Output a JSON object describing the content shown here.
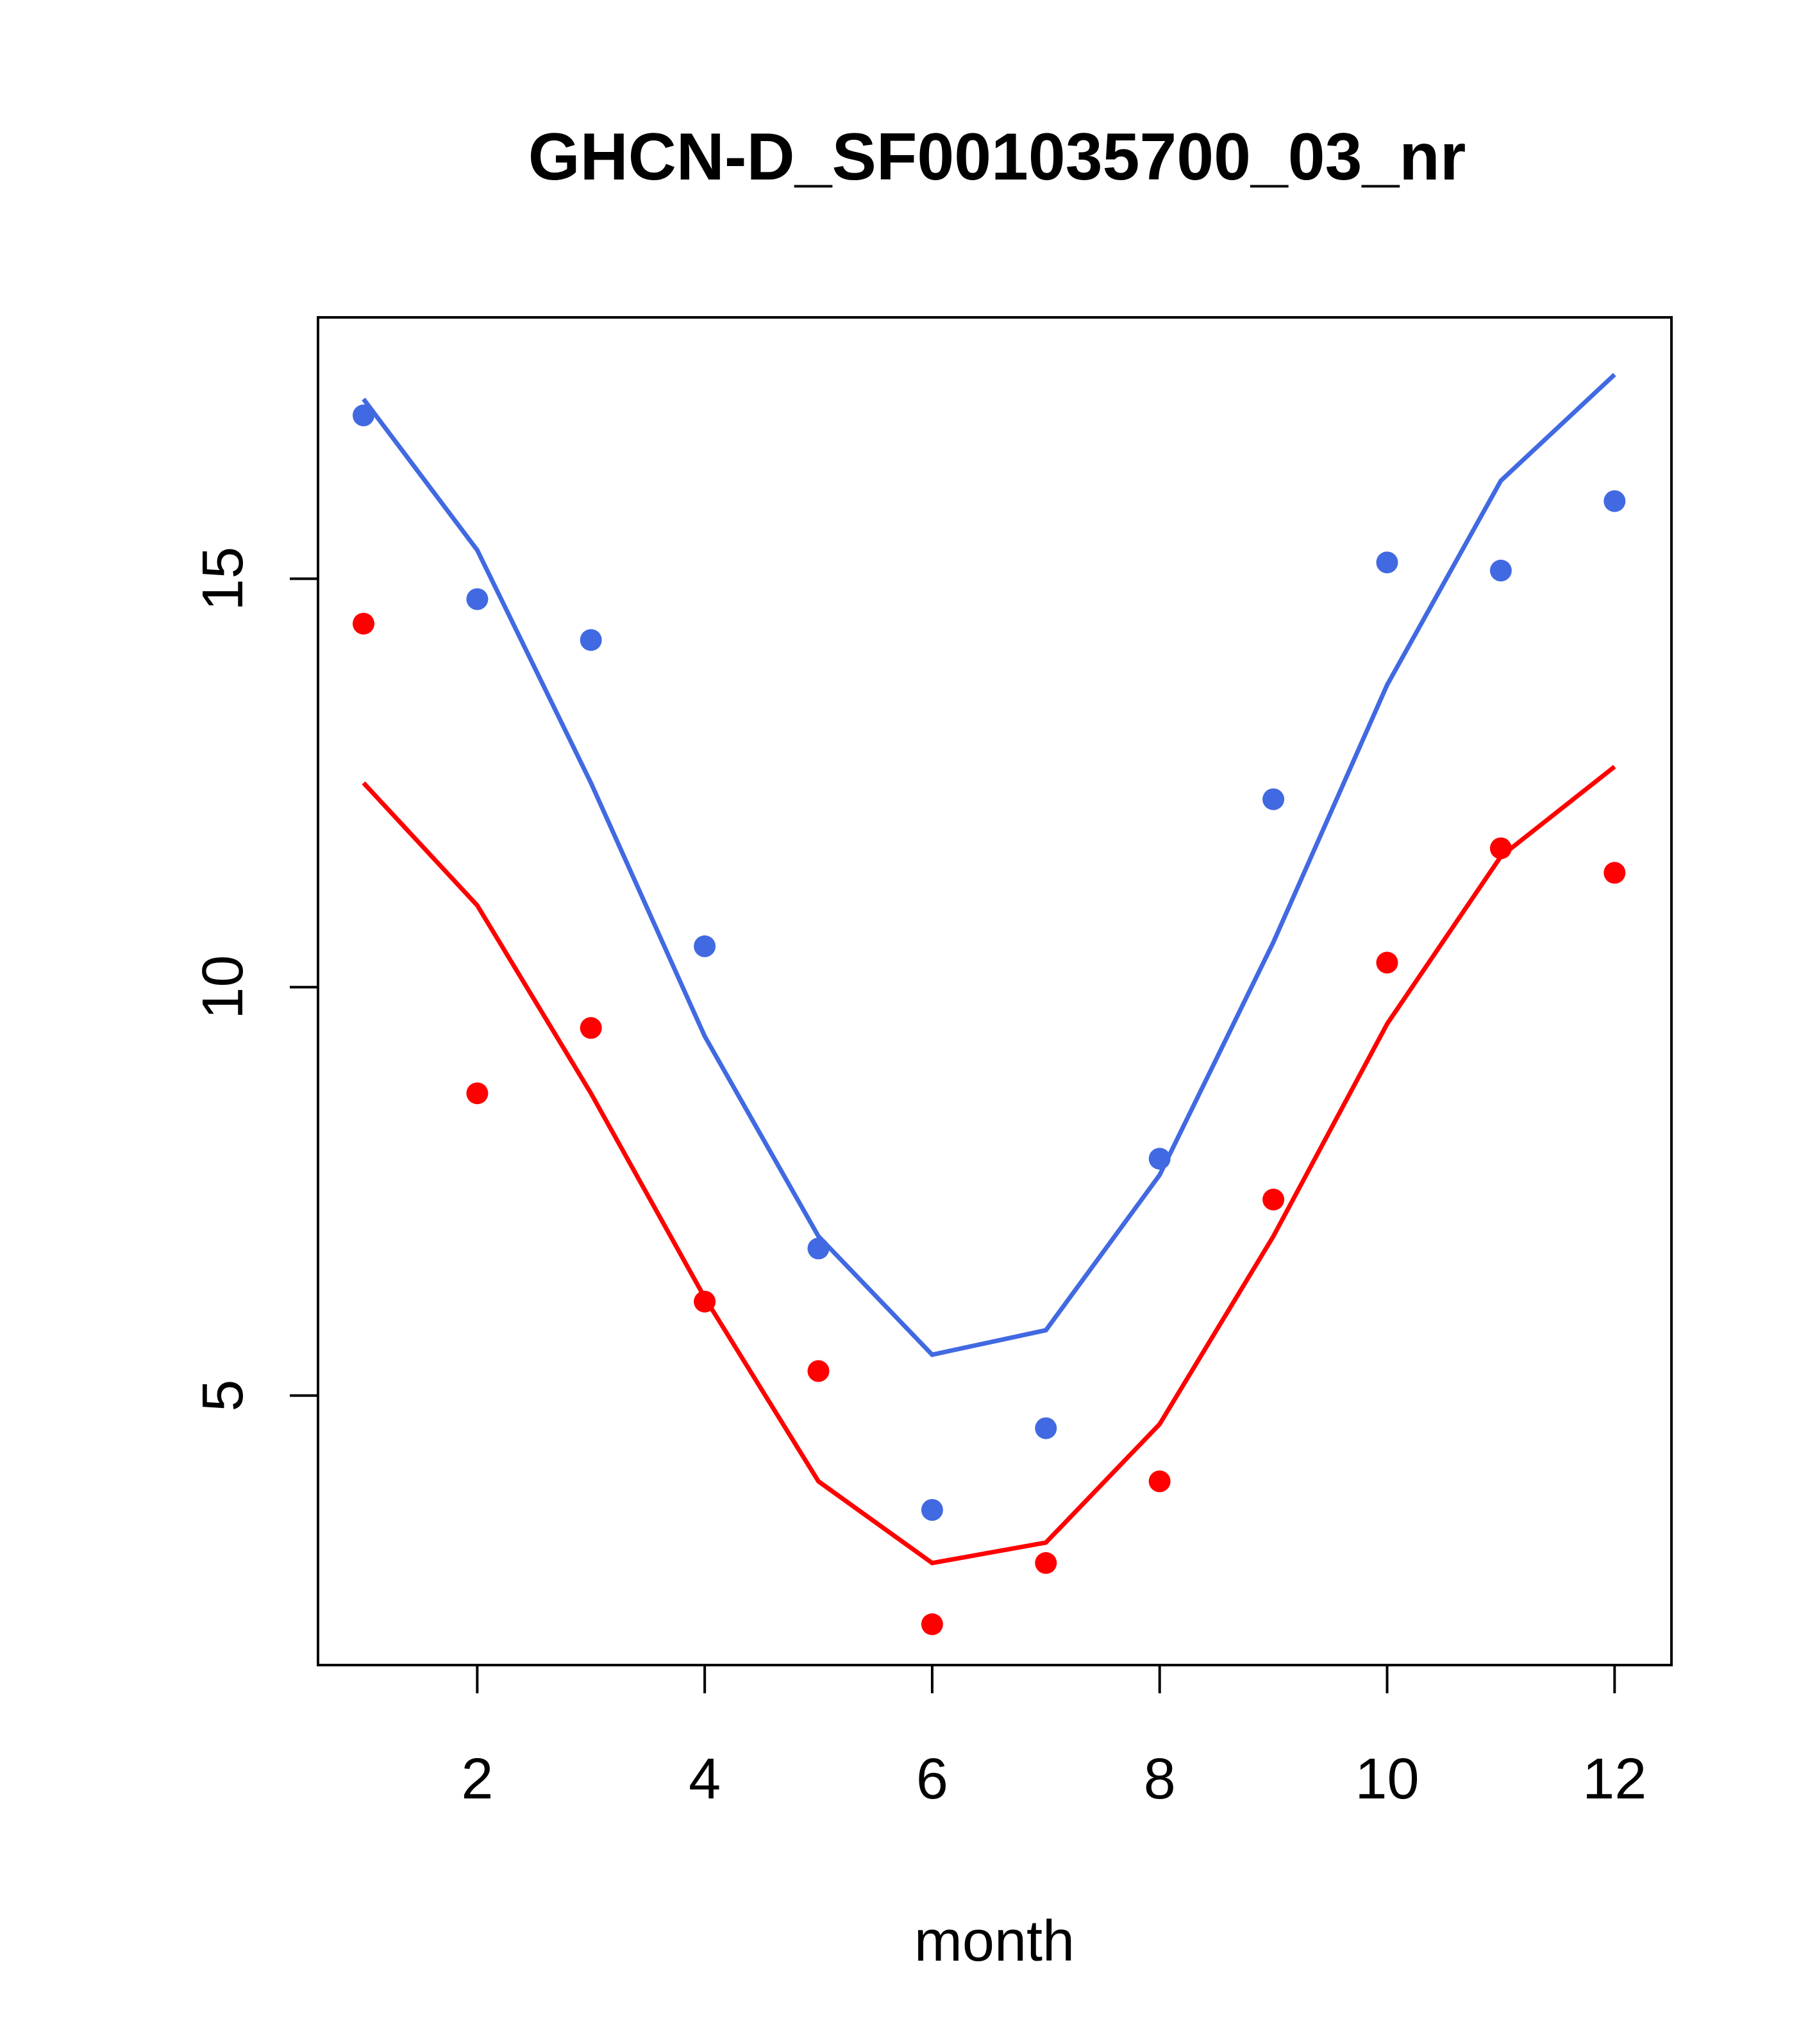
{
  "chart_data": {
    "type": "line",
    "title": "GHCN-D_SF001035700_03_nr",
    "xlabel": "month",
    "ylabel": "",
    "xlim": [
      0.6,
      12.5
    ],
    "ylim": [
      1.7,
      18.2
    ],
    "x_ticks": [
      2,
      4,
      6,
      8,
      10,
      12
    ],
    "y_ticks": [
      5,
      10,
      15
    ],
    "grid": false,
    "legend": "none",
    "x": [
      1,
      2,
      3,
      4,
      5,
      6,
      7,
      8,
      9,
      10,
      11,
      12
    ],
    "series": [
      {
        "color": "#4169e1",
        "kind": "line",
        "values": [
          17.2,
          15.35,
          12.5,
          9.4,
          6.95,
          5.5,
          5.8,
          7.7,
          10.55,
          13.7,
          16.2,
          17.5
        ]
      },
      {
        "color": "#4169e1",
        "kind": "points",
        "values": [
          17.0,
          14.75,
          14.25,
          10.5,
          6.8,
          3.6,
          4.6,
          7.9,
          12.3,
          15.2,
          15.1,
          15.95
        ]
      },
      {
        "color": "#ff0000",
        "kind": "line",
        "values": [
          12.5,
          11.0,
          8.7,
          6.2,
          3.95,
          2.95,
          3.2,
          4.65,
          6.95,
          9.55,
          11.6,
          12.7
        ]
      },
      {
        "color": "#ff0000",
        "kind": "points",
        "values": [
          14.45,
          8.7,
          9.5,
          6.15,
          5.3,
          2.2,
          2.95,
          3.95,
          7.4,
          10.3,
          11.7,
          11.4
        ]
      }
    ]
  }
}
